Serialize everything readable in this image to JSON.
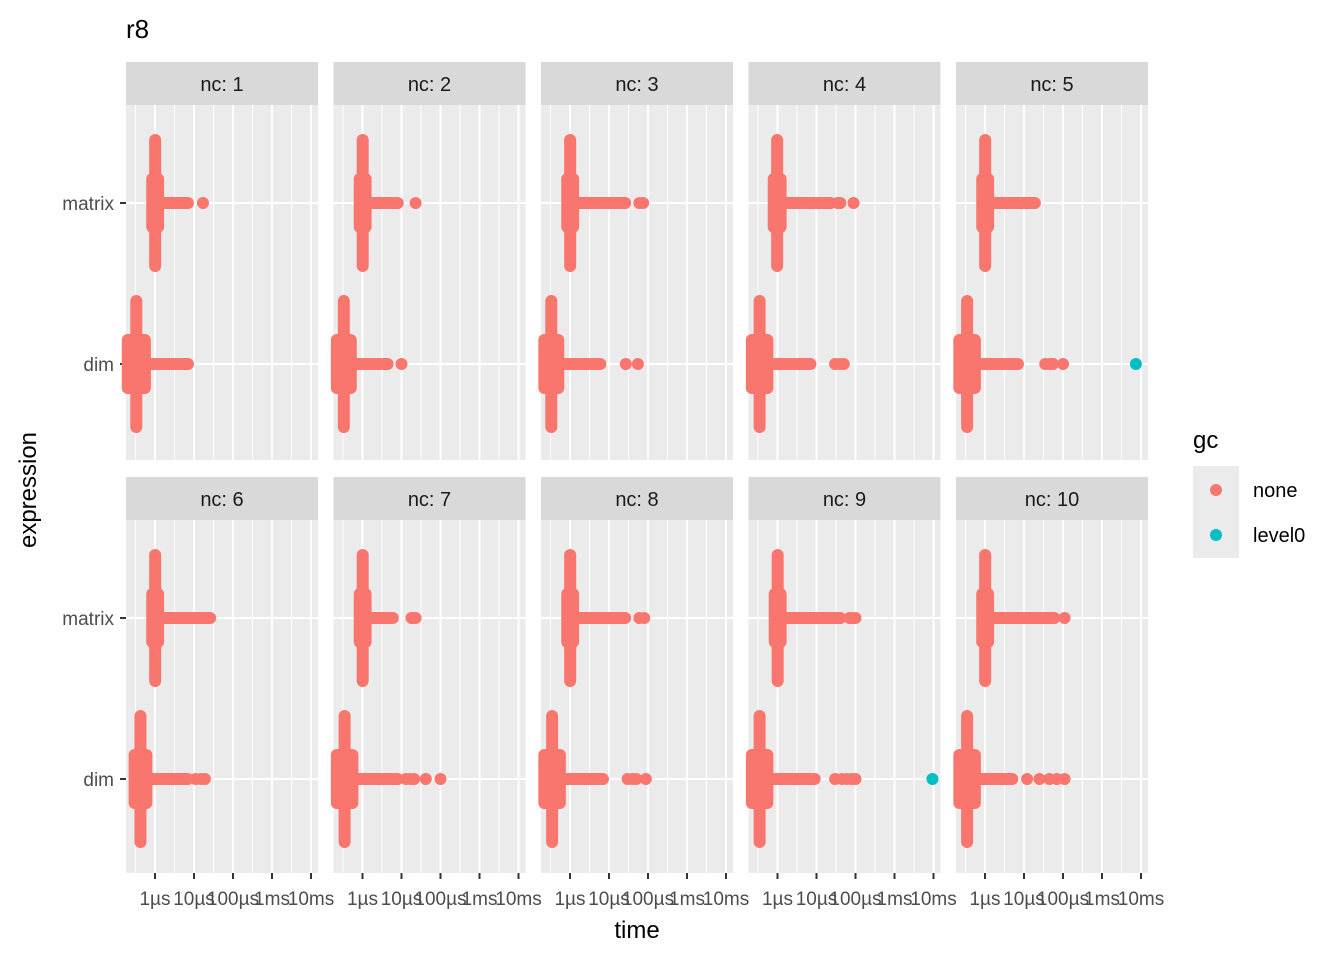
{
  "chart_data": {
    "type": "scatter",
    "title": "r8",
    "xlabel": "time",
    "ylabel": "expression",
    "x_scale": "log10",
    "x_unit": "µs",
    "xlim_us": [
      0.18,
      15000
    ],
    "x_ticks": [
      {
        "value_us": 1,
        "label": "1µs"
      },
      {
        "value_us": 10,
        "label": "10µs"
      },
      {
        "value_us": 100,
        "label": "100µs"
      },
      {
        "value_us": 1000,
        "label": "1ms"
      },
      {
        "value_us": 10000,
        "label": "10ms"
      }
    ],
    "y_categories": [
      "matrix",
      "dim"
    ],
    "grid": true,
    "facet_prefix": "nc: ",
    "legend": {
      "title": "gc",
      "placement": "right",
      "entries": [
        {
          "label": "none",
          "color": "#F8766D"
        },
        {
          "label": "level0",
          "color": "#00BFC4"
        }
      ]
    },
    "panels": [
      {
        "nc": 1,
        "matrix": {
          "band_us": [
            0.85,
            1.2
          ],
          "tail_us": [
            1,
            7
          ],
          "points_us": [
            17
          ],
          "level0_us": []
        },
        "dim": {
          "band_us": [
            0.2,
            0.55
          ],
          "tail_us": [
            0.4,
            7
          ],
          "points_us": [],
          "level0_us": []
        }
      },
      {
        "nc": 2,
        "matrix": {
          "band_us": [
            0.85,
            1.2
          ],
          "tail_us": [
            1,
            8
          ],
          "points_us": [
            23
          ],
          "level0_us": []
        },
        "dim": {
          "band_us": [
            0.22,
            0.5
          ],
          "tail_us": [
            0.4,
            4.4
          ],
          "points_us": [
            10
          ],
          "level0_us": []
        }
      },
      {
        "nc": 3,
        "matrix": {
          "band_us": [
            0.85,
            1.2
          ],
          "tail_us": [
            1,
            26
          ],
          "points_us": [
            60,
            75
          ],
          "level0_us": []
        },
        "dim": {
          "band_us": [
            0.22,
            0.5
          ],
          "tail_us": [
            0.4,
            6
          ],
          "points_us": [
            27,
            55
          ],
          "level0_us": []
        }
      },
      {
        "nc": 4,
        "matrix": {
          "band_us": [
            0.8,
            1.2
          ],
          "tail_us": [
            1,
            23
          ],
          "points_us": [
            35,
            41,
            89
          ],
          "level0_us": []
        },
        "dim": {
          "band_us": [
            0.22,
            0.55
          ],
          "tail_us": [
            0.4,
            7
          ],
          "points_us": [
            30,
            40,
            50
          ],
          "level0_us": []
        }
      },
      {
        "nc": 5,
        "matrix": {
          "band_us": [
            0.85,
            1.2
          ],
          "tail_us": [
            1,
            19
          ],
          "points_us": [],
          "level0_us": []
        },
        "dim": {
          "band_us": [
            0.22,
            0.55
          ],
          "tail_us": [
            0.4,
            7
          ],
          "points_us": [
            35,
            45,
            55,
            100
          ],
          "level0_us": [
            7400
          ]
        }
      },
      {
        "nc": 6,
        "matrix": {
          "band_us": [
            0.85,
            1.2
          ],
          "tail_us": [
            1,
            26
          ],
          "points_us": [],
          "level0_us": []
        },
        "dim": {
          "band_us": [
            0.3,
            0.6
          ],
          "tail_us": [
            0.4,
            7
          ],
          "points_us": [
            11,
            15,
            19
          ],
          "level0_us": []
        }
      },
      {
        "nc": 7,
        "matrix": {
          "band_us": [
            0.85,
            1.2
          ],
          "tail_us": [
            1,
            6
          ],
          "points_us": [
            18,
            21,
            23
          ],
          "level0_us": []
        },
        "dim": {
          "band_us": [
            0.22,
            0.55
          ],
          "tail_us": [
            0.4,
            8
          ],
          "points_us": [
            13,
            17,
            21,
            42,
            100
          ],
          "level0_us": []
        }
      },
      {
        "nc": 8,
        "matrix": {
          "band_us": [
            0.85,
            1.2
          ],
          "tail_us": [
            1,
            26
          ],
          "points_us": [
            60,
            80
          ],
          "level0_us": []
        },
        "dim": {
          "band_us": [
            0.22,
            0.55
          ],
          "tail_us": [
            0.4,
            7
          ],
          "points_us": [
            30,
            40,
            50,
            88
          ],
          "level0_us": []
        }
      },
      {
        "nc": 9,
        "matrix": {
          "band_us": [
            0.85,
            1.2
          ],
          "tail_us": [
            1,
            41
          ],
          "points_us": [
            70,
            85,
            100
          ],
          "level0_us": []
        },
        "dim": {
          "band_us": [
            0.22,
            0.55
          ],
          "tail_us": [
            0.4,
            9
          ],
          "points_us": [
            30,
            45,
            60,
            80,
            100
          ],
          "level0_us": [
            9400
          ]
        }
      },
      {
        "nc": 10,
        "matrix": {
          "band_us": [
            0.85,
            1.2
          ],
          "tail_us": [
            1,
            60
          ],
          "points_us": [
            110
          ],
          "level0_us": []
        },
        "dim": {
          "band_us": [
            0.22,
            0.55
          ],
          "tail_us": [
            0.4,
            5
          ],
          "points_us": [
            12,
            25,
            45,
            70,
            110
          ],
          "level0_us": []
        }
      }
    ]
  }
}
